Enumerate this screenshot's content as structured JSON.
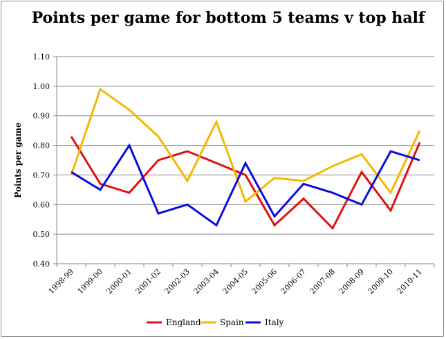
{
  "chart_data": {
    "type": "line",
    "title": "Points per game for bottom 5 teams v top half",
    "xlabel": "",
    "ylabel": "Points per game",
    "ylim": [
      0.4,
      1.1
    ],
    "yticks": [
      "0.40",
      "0.50",
      "0.60",
      "0.70",
      "0.80",
      "0.90",
      "1.00",
      "1.10"
    ],
    "grid": true,
    "legend": "bottom",
    "categories": [
      "1998-99",
      "1999-00",
      "2000-01",
      "2001-02",
      "2002-03",
      "2003-04",
      "2004-05",
      "2005-06",
      "2006-07",
      "2007-08",
      "2008-09",
      "2009-10",
      "2010-11"
    ],
    "series": [
      {
        "name": "England",
        "color": "#e01010",
        "values": [
          0.83,
          0.67,
          0.64,
          0.75,
          0.78,
          0.74,
          0.7,
          0.53,
          0.62,
          0.52,
          0.71,
          0.58,
          0.81
        ]
      },
      {
        "name": "Spain",
        "color": "#f5b800",
        "values": [
          0.7,
          0.99,
          0.92,
          0.83,
          0.68,
          0.88,
          0.61,
          0.69,
          0.68,
          0.73,
          0.77,
          0.64,
          0.85
        ]
      },
      {
        "name": "Italy",
        "color": "#0a0ae0",
        "values": [
          0.71,
          0.65,
          0.8,
          0.57,
          0.6,
          0.53,
          0.74,
          0.56,
          0.67,
          0.64,
          0.6,
          0.78,
          0.75
        ]
      }
    ]
  }
}
